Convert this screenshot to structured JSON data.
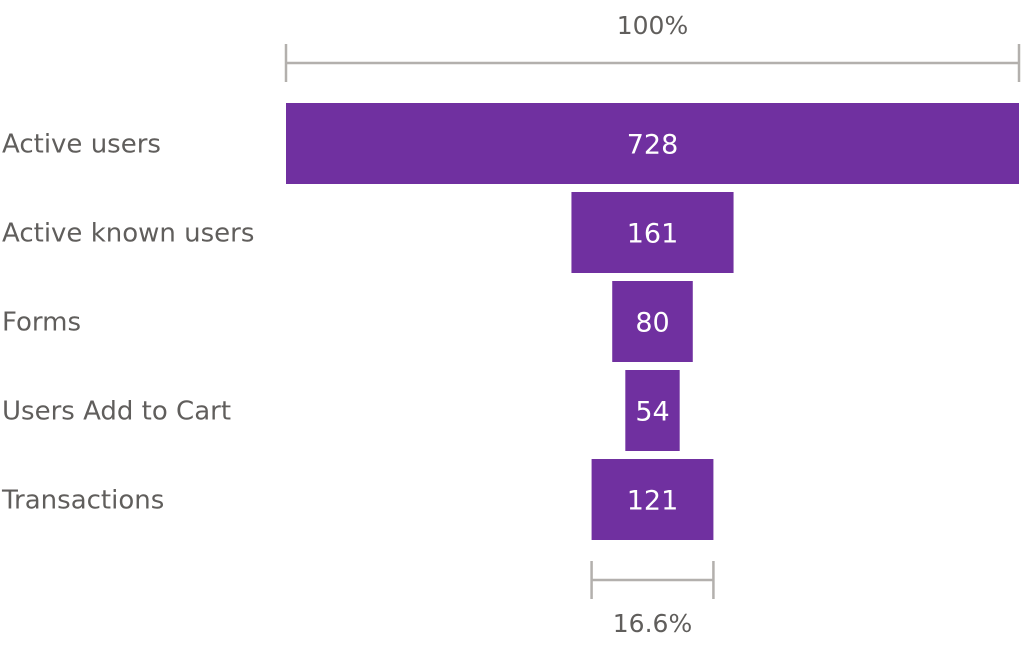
{
  "chart_data": {
    "type": "funnel",
    "categories": [
      "Active users",
      "Active known users",
      "Forms",
      "Users Add to Cart",
      "Transactions"
    ],
    "values": [
      728,
      161,
      80,
      54,
      121
    ],
    "top_percent_label": "100%",
    "bottom_percent_label": "16.6%",
    "color": "#7030a0",
    "bracket_color": "#b3b0ad",
    "label_color": "#605e5c"
  }
}
